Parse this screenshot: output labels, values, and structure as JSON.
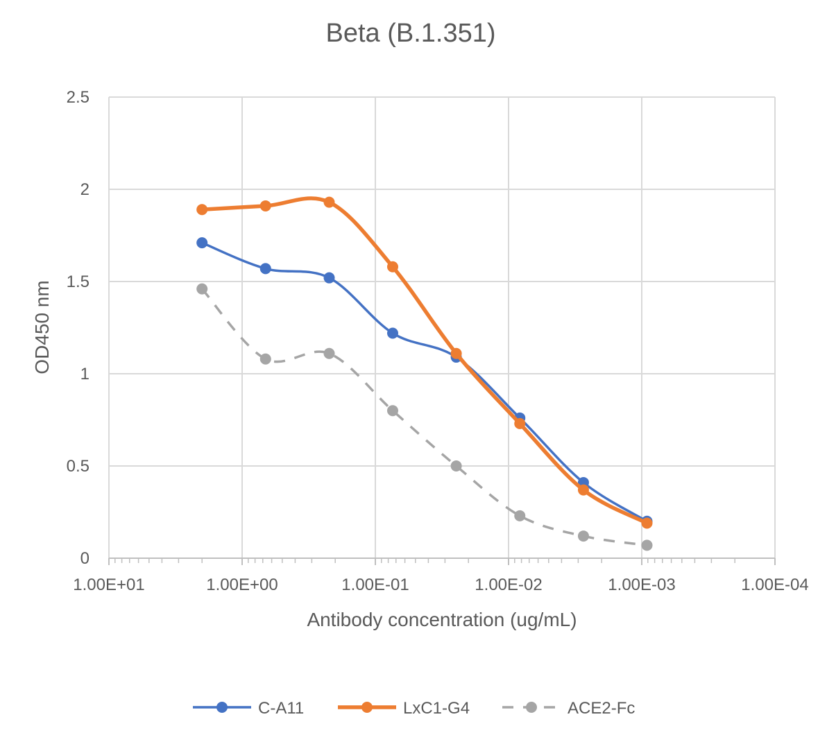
{
  "chart_data": {
    "type": "line",
    "title": "Beta (B.1.351)",
    "xlabel": "Antibody concentration (ug/mL)",
    "ylabel": "OD450 nm",
    "x_scale": "log",
    "x_reversed": true,
    "xlim": [
      10,
      0.0001
    ],
    "ylim": [
      0,
      2.5
    ],
    "y_ticks": [
      0,
      0.5,
      1,
      1.5,
      2,
      2.5
    ],
    "y_tick_labels": [
      "0",
      "0.5",
      "1",
      "1.5",
      "2",
      "2.5"
    ],
    "x_ticks": [
      10,
      1,
      0.1,
      0.01,
      0.001,
      0.0001
    ],
    "x_tick_labels": [
      "1.00E+01",
      "1.00E+00",
      "1.00E-01",
      "1.00E-02",
      "1.00E-03",
      "1.00E-04"
    ],
    "grid": true,
    "legend_position": "bottom",
    "x": [
      2,
      0.667,
      0.222,
      0.0741,
      0.0247,
      0.00823,
      0.00274,
      0.000914
    ],
    "series": [
      {
        "name": "C-A11",
        "color": "#4472C4",
        "style": "solid",
        "marker": "circle",
        "values": [
          1.71,
          1.57,
          1.52,
          1.22,
          1.09,
          0.76,
          0.41,
          0.2
        ]
      },
      {
        "name": "LxC1-G4",
        "color": "#ED7D31",
        "style": "solid",
        "marker": "circle",
        "values": [
          1.89,
          1.91,
          1.93,
          1.58,
          1.11,
          0.73,
          0.37,
          0.19
        ]
      },
      {
        "name": "ACE2-Fc",
        "color": "#A5A5A5",
        "style": "dashed",
        "marker": "circle",
        "values": [
          1.46,
          1.08,
          1.11,
          0.8,
          0.5,
          0.23,
          0.12,
          0.07
        ]
      }
    ]
  }
}
